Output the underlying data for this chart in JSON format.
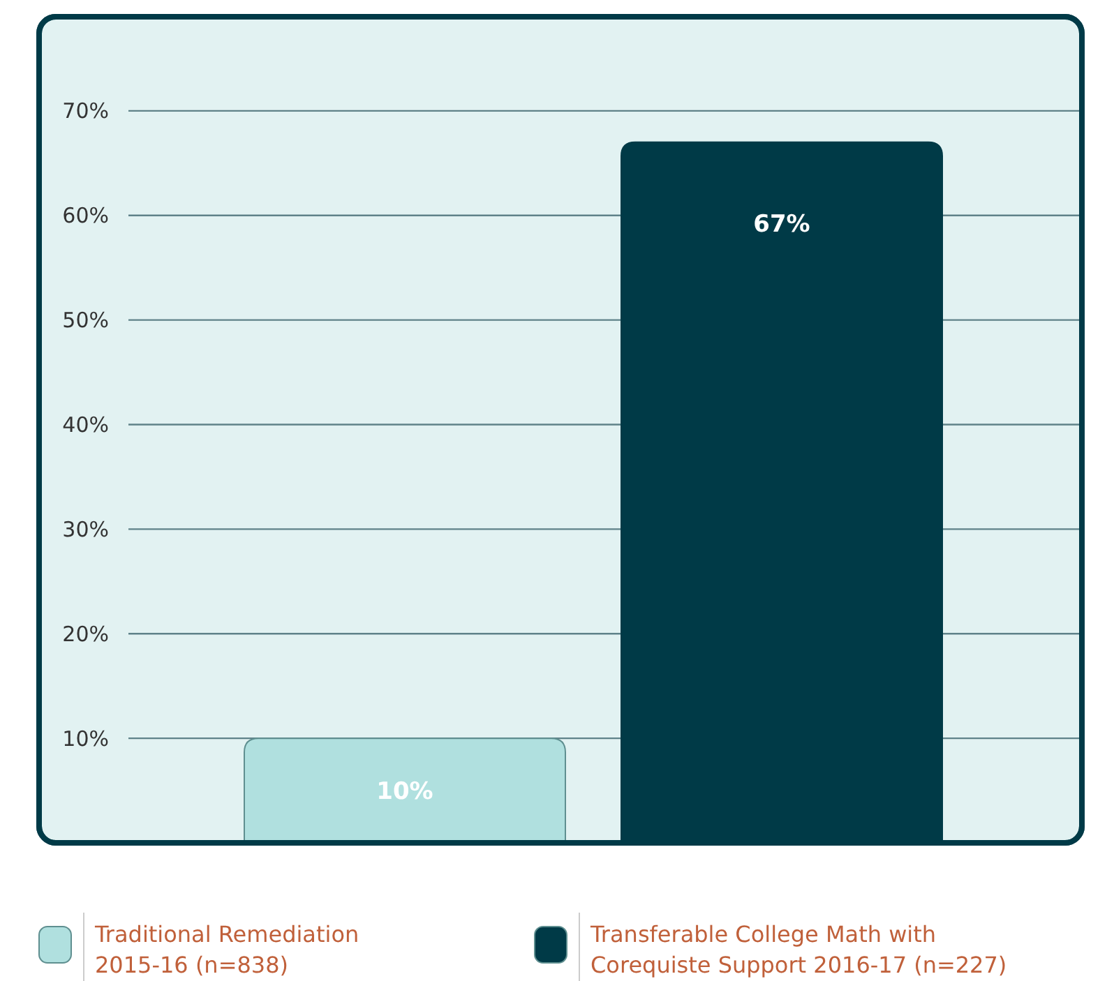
{
  "chart_data": {
    "type": "bar",
    "categories": [
      null,
      null
    ],
    "series": [
      {
        "name": "Traditional Remediation 2015-16 (n=838)",
        "color": "#b0e0df",
        "values": [
          10,
          null
        ],
        "value_labels": [
          "10%",
          null
        ]
      },
      {
        "name": "Transferable College Math with Corequiste Support 2016-17 (n=227)",
        "color": "#003a47",
        "values": [
          null,
          67
        ],
        "value_labels": [
          null,
          "67%"
        ]
      }
    ],
    "ylim": [
      0,
      79
    ],
    "yticks": [
      {
        "value": 10,
        "label": "10%"
      },
      {
        "value": 20,
        "label": "20%"
      },
      {
        "value": 30,
        "label": "30%"
      },
      {
        "value": 40,
        "label": "40%"
      },
      {
        "value": 50,
        "label": "50%"
      },
      {
        "value": 60,
        "label": "60%"
      },
      {
        "value": 70,
        "label": "70%"
      }
    ],
    "grid": "y",
    "legend": "bottom"
  }
}
